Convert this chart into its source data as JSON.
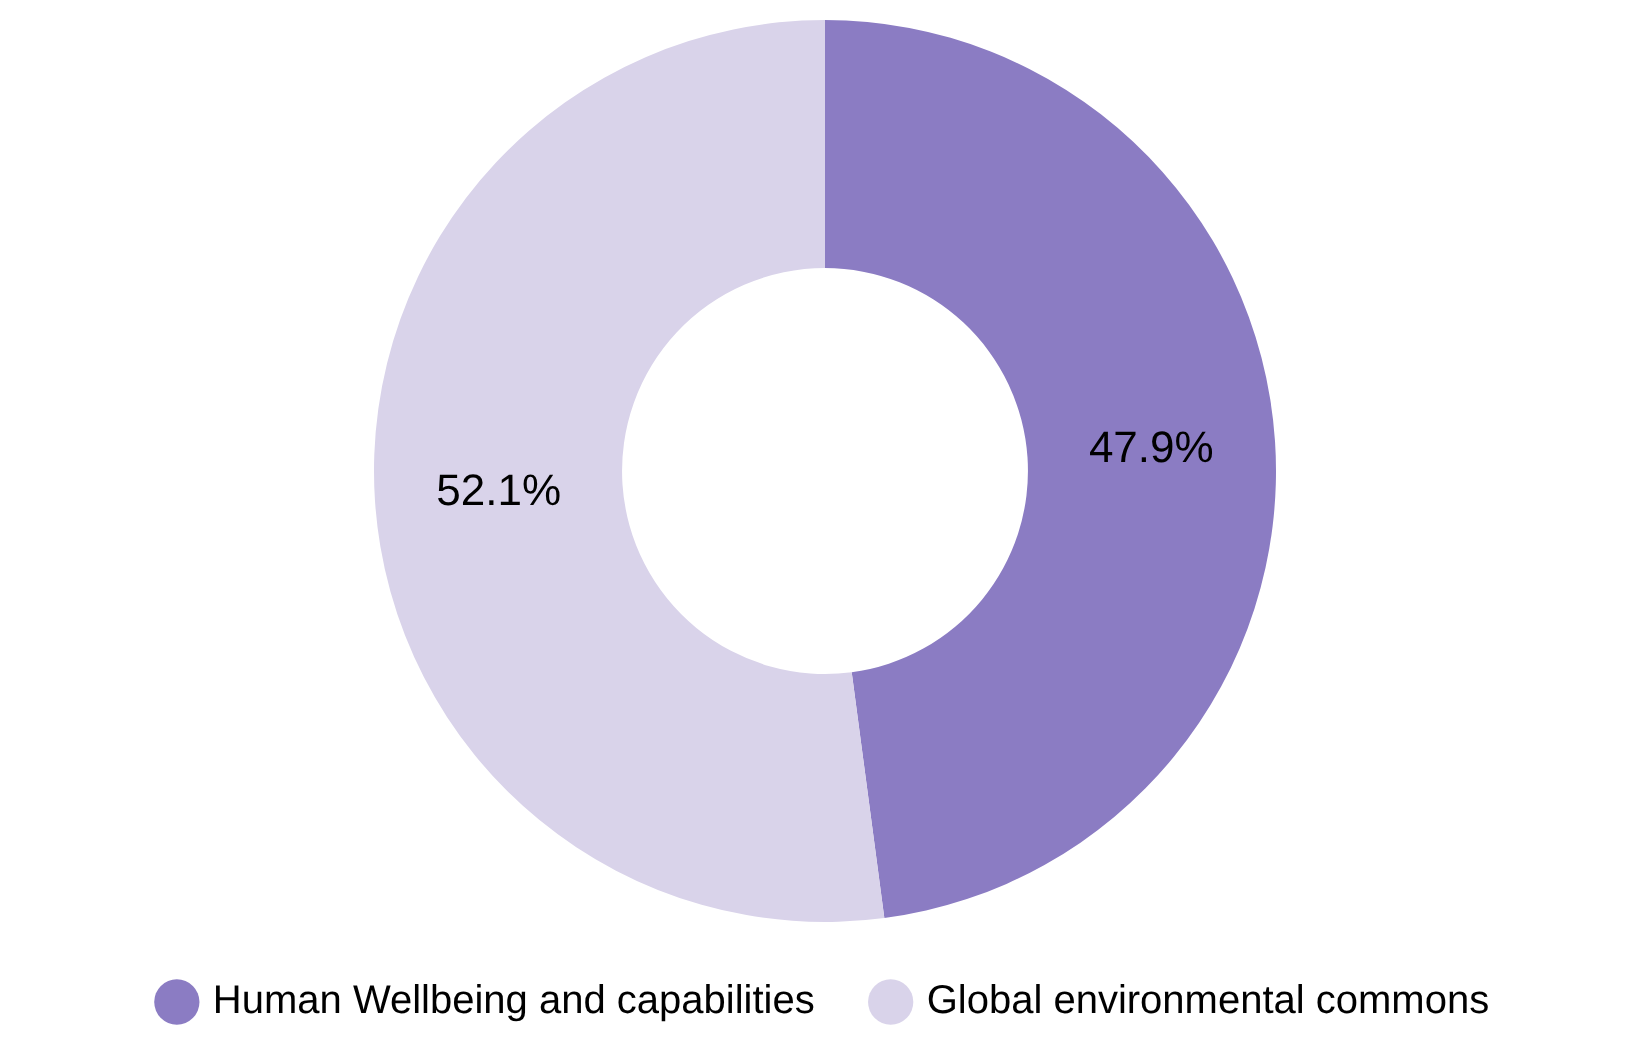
{
  "chart_data": {
    "type": "donut",
    "categories": [
      "Human Wellbeing and capabilities",
      "Global environmental commons"
    ],
    "values": [
      47.9,
      52.1
    ],
    "colors": [
      "#8b7cc3",
      "#d9d3ea"
    ],
    "value_labels": [
      "47.9%",
      "52.1%"
    ],
    "legend": "bottom"
  }
}
